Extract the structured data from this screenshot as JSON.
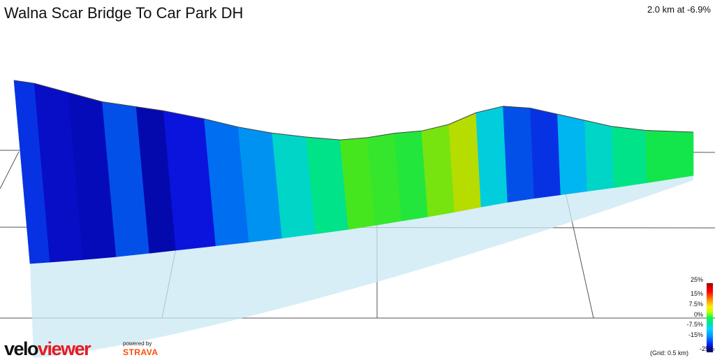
{
  "header": {
    "title": "Walna Scar Bridge To Car Park DH",
    "summary": "2.0 km at -6.9%"
  },
  "legend": {
    "ticks": [
      "25%",
      "15%",
      "7.5%",
      "0%",
      "-7.5%",
      "-15%",
      "-25%"
    ],
    "grid_note": "(Grid: 0.5 km)"
  },
  "branding": {
    "logo_part1": "velo",
    "logo_part2": "viewer",
    "powered_by": "powered by",
    "strava": "STRAVA"
  },
  "colors": {
    "steep_down": "#0a1fd8",
    "flat": "#00e070",
    "gentle_up": "#b8e800"
  },
  "chart_data": {
    "type": "area",
    "title": "Walna Scar Bridge To Car Park DH",
    "xlabel": "",
    "ylabel": "",
    "distance_km": 2.0,
    "avg_gradient_pct": -6.9,
    "grid_spacing_km": 0.5,
    "color_scale_pct": [
      -25,
      25
    ],
    "profile_points": [
      [
        0.0,
        1.0,
        2
      ],
      [
        0.03,
        0.97,
        -16
      ],
      [
        0.08,
        0.88,
        -20
      ],
      [
        0.13,
        0.79,
        -21
      ],
      [
        0.18,
        0.74,
        -14
      ],
      [
        0.22,
        0.7,
        -22
      ],
      [
        0.28,
        0.62,
        -18
      ],
      [
        0.33,
        0.54,
        -12
      ],
      [
        0.38,
        0.48,
        -10
      ],
      [
        0.43,
        0.44,
        -5
      ],
      [
        0.48,
        0.41,
        -2
      ],
      [
        0.52,
        0.43,
        4
      ],
      [
        0.56,
        0.47,
        3
      ],
      [
        0.6,
        0.49,
        2
      ],
      [
        0.64,
        0.55,
        6
      ],
      [
        0.68,
        0.66,
        9
      ],
      [
        0.72,
        0.72,
        -6
      ],
      [
        0.76,
        0.7,
        -14
      ],
      [
        0.8,
        0.64,
        -16
      ],
      [
        0.84,
        0.58,
        -8
      ],
      [
        0.88,
        0.52,
        -5
      ],
      [
        0.93,
        0.48,
        -2
      ],
      [
        1.0,
        0.46,
        1
      ]
    ]
  }
}
